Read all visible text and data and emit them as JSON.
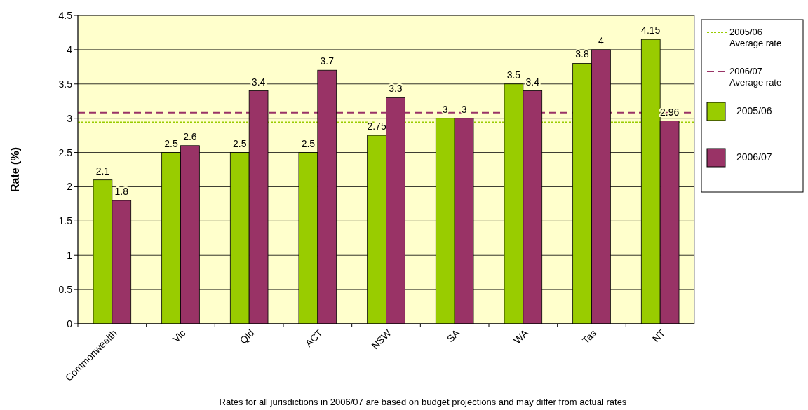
{
  "chart_data": {
    "type": "bar",
    "ylabel": "Rate (%)",
    "categories": [
      "Commonwealth",
      "Vic",
      "Qld",
      "ACT",
      "NSW",
      "SA",
      "WA",
      "Tas",
      "NT"
    ],
    "series": [
      {
        "name": "2005/06",
        "color": "#99cc00",
        "values": [
          2.1,
          2.5,
          2.5,
          2.5,
          2.75,
          3,
          3.5,
          3.8,
          4.15
        ]
      },
      {
        "name": "2006/07",
        "color": "#993366",
        "values": [
          1.8,
          2.6,
          3.4,
          3.7,
          3.3,
          3,
          3.4,
          4,
          2.96
        ]
      }
    ],
    "ylim": [
      0,
      4.5
    ],
    "yticks": [
      0,
      0.5,
      1,
      1.5,
      2,
      2.5,
      3,
      3.5,
      4,
      4.5
    ],
    "grid": "y",
    "legend": "right",
    "data_labels": true,
    "ref_lines": [
      {
        "axis": "y",
        "value": 2.94,
        "label": "2005/06 Average rate",
        "color": "#99cc00",
        "line_style": "dotted"
      },
      {
        "axis": "y",
        "value": 3.08,
        "label": "2006/07 Average rate",
        "color": "#993366",
        "line_style": "dashed"
      }
    ],
    "annotations": [
      "Rates for all jurisdictions in 2006/07 are based on budget projections and may differ from actual rates"
    ]
  }
}
